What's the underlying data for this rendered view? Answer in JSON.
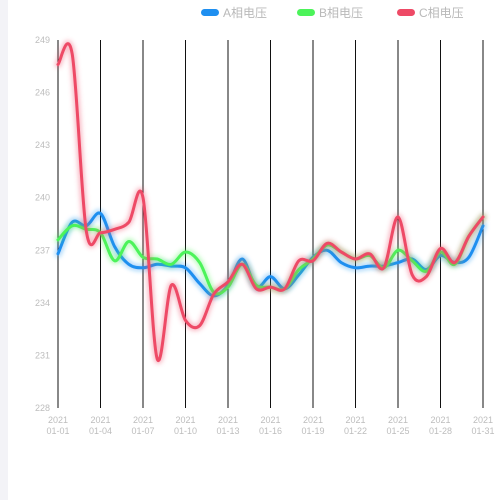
{
  "chart_data": {
    "type": "line",
    "title": "",
    "xlabel": "",
    "ylabel": "",
    "ylim": [
      228,
      249
    ],
    "yticks": [
      228,
      231,
      234,
      237,
      240,
      243,
      246,
      249
    ],
    "xlim": [
      1,
      31
    ],
    "xticks": [
      {
        "day": 1,
        "year": "2021",
        "md": "01-01"
      },
      {
        "day": 4,
        "year": "2021",
        "md": "01-04"
      },
      {
        "day": 7,
        "year": "2021",
        "md": "01-07"
      },
      {
        "day": 10,
        "year": "2021",
        "md": "01-10"
      },
      {
        "day": 13,
        "year": "2021",
        "md": "01-13"
      },
      {
        "day": 16,
        "year": "2021",
        "md": "01-16"
      },
      {
        "day": 19,
        "year": "2021",
        "md": "01-19"
      },
      {
        "day": 22,
        "year": "2021",
        "md": "01-22"
      },
      {
        "day": 25,
        "year": "2021",
        "md": "01-25"
      },
      {
        "day": 28,
        "year": "2021",
        "md": "01-28"
      },
      {
        "day": 31,
        "year": "2021",
        "md": "01-31"
      }
    ],
    "grid": "vertical",
    "legend_position": "top-right",
    "series": [
      {
        "name": "A相电压",
        "color": "#1e8ff0",
        "x": [
          1,
          2,
          3,
          4,
          5,
          6,
          7,
          8,
          9,
          10,
          11,
          12,
          13,
          14,
          15,
          16,
          17,
          18,
          19,
          20,
          21,
          22,
          23,
          24,
          25,
          26,
          27,
          28,
          29,
          30,
          31
        ],
        "values": [
          236.8,
          238.6,
          238.4,
          239.1,
          237.2,
          236.2,
          236.0,
          236.2,
          236.1,
          236.0,
          235.1,
          234.4,
          235.0,
          236.5,
          234.9,
          235.5,
          234.8,
          235.6,
          236.6,
          237.0,
          236.3,
          236.0,
          236.1,
          236.1,
          236.3,
          236.5,
          235.9,
          236.7,
          236.3,
          236.6,
          238.4
        ]
      },
      {
        "name": "B相电压",
        "color": "#4cf35a",
        "x": [
          1,
          2,
          3,
          4,
          5,
          6,
          7,
          8,
          9,
          10,
          11,
          12,
          13,
          14,
          15,
          16,
          17,
          18,
          19,
          20,
          21,
          22,
          23,
          24,
          25,
          26,
          27,
          28,
          29,
          30,
          31
        ],
        "values": [
          237.6,
          238.4,
          238.2,
          238.0,
          236.4,
          237.5,
          236.6,
          236.5,
          236.2,
          236.9,
          236.3,
          234.6,
          234.9,
          236.2,
          235.0,
          234.9,
          234.8,
          235.9,
          236.5,
          237.3,
          236.9,
          236.5,
          236.7,
          236.0,
          237.0,
          236.4,
          235.8,
          236.9,
          236.2,
          237.8,
          238.9
        ]
      },
      {
        "name": "C相电压",
        "color": "#ee4a66",
        "x": [
          1,
          2,
          3,
          4,
          5,
          6,
          7,
          8,
          9,
          10,
          11,
          12,
          13,
          14,
          15,
          16,
          17,
          18,
          19,
          20,
          21,
          22,
          23,
          24,
          25,
          26,
          27,
          28,
          29,
          30,
          31
        ],
        "values": [
          247.6,
          248.2,
          238.1,
          238.0,
          238.2,
          238.6,
          240.0,
          230.8,
          235.0,
          233.0,
          232.7,
          234.5,
          235.2,
          236.2,
          234.8,
          234.9,
          234.8,
          236.4,
          236.4,
          237.4,
          236.9,
          236.5,
          236.8,
          236.0,
          238.9,
          235.6,
          235.5,
          237.1,
          236.3,
          237.8,
          238.9
        ]
      }
    ]
  }
}
